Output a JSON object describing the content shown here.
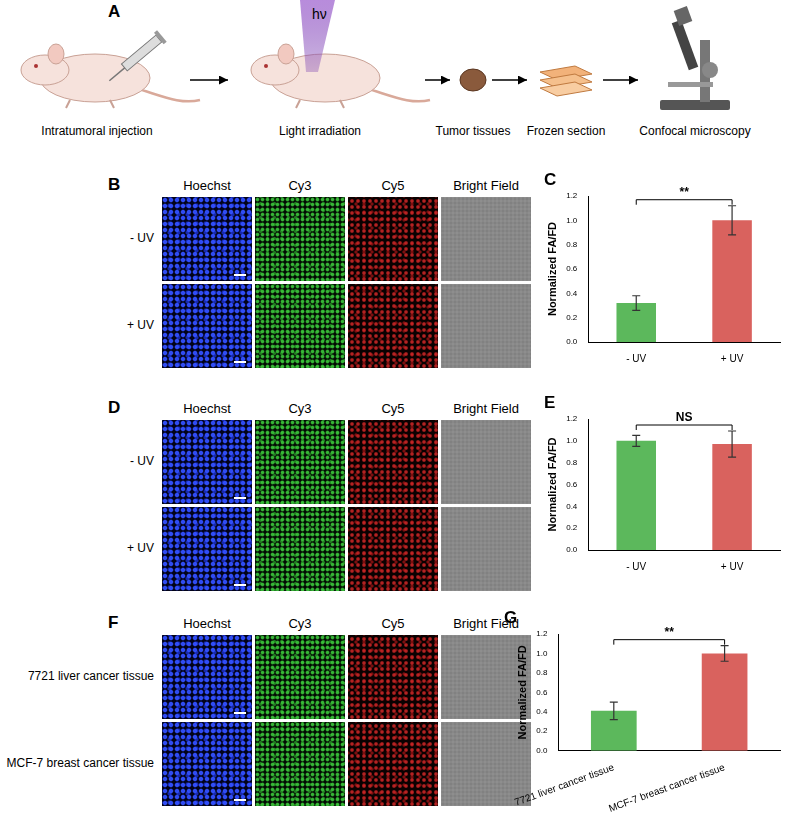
{
  "panel_a": {
    "label": "A",
    "light": "hν",
    "steps": [
      "Intratumoral injection",
      "Light irradiation",
      "Tumor tissues",
      "Frozen section",
      "Confocal microscopy"
    ]
  },
  "image_panels": [
    {
      "label": "B",
      "columns": [
        "Hoechst",
        "Cy3",
        "Cy5",
        "Bright Field"
      ],
      "rows": [
        "- UV",
        "+ UV"
      ]
    },
    {
      "label": "D",
      "columns": [
        "Hoechst",
        "Cy3",
        "Cy5",
        "Bright Field"
      ],
      "rows": [
        "- UV",
        "+ UV"
      ]
    },
    {
      "label": "F",
      "columns": [
        "Hoechst",
        "Cy3",
        "Cy5",
        "Bright Field"
      ],
      "rows": [
        "7721 liver cancer tissue",
        "MCF-7 breast cancer tissue"
      ]
    }
  ],
  "chart_data": [
    {
      "panel": "C",
      "type": "bar",
      "y_label": "Normalized FA/FD",
      "categories": [
        "- UV",
        "+ UV"
      ],
      "values": [
        0.32,
        1.0
      ],
      "errors": [
        0.06,
        0.12
      ],
      "colors": [
        "#5cb85c",
        "#d9625e"
      ],
      "annotation": "**",
      "grid": false,
      "ylim": [
        0,
        1.2
      ],
      "yticks": [
        {
          "value": 0,
          "label": "0.0"
        },
        0.2,
        0.4,
        0.6,
        0.8,
        {
          "value": 1,
          "label": "1.0"
        },
        1.2
      ]
    },
    {
      "panel": "E",
      "type": "bar",
      "y_label": "Normalized FA/FD",
      "categories": [
        "- UV",
        "+ UV"
      ],
      "values": [
        1.0,
        0.97
      ],
      "errors": [
        0.05,
        0.12
      ],
      "colors": [
        "#5cb85c",
        "#d9625e"
      ],
      "annotation": "NS",
      "grid": false,
      "ylim": [
        0,
        1.2
      ],
      "yticks": [
        {
          "value": 0,
          "label": "0.0"
        },
        0.2,
        0.4,
        0.6,
        0.8,
        {
          "value": 1,
          "label": "1.0"
        },
        1.2
      ]
    },
    {
      "panel": "G",
      "type": "bar",
      "y_label": "Normalized FA/FD",
      "categories": [
        "7721 liver cancer tissue",
        "MCF-7 breast cancer tissue"
      ],
      "values": [
        0.41,
        1.0
      ],
      "errors": [
        0.09,
        0.08
      ],
      "colors": [
        "#5cb85c",
        "#d9625e"
      ],
      "annotation": "**",
      "grid": false,
      "ylim": [
        0,
        1.2
      ],
      "yticks": [
        {
          "value": 0,
          "label": "0.0"
        },
        0.2,
        0.4,
        0.6,
        0.8,
        {
          "value": 1,
          "label": "1.0"
        },
        1.2
      ]
    }
  ]
}
